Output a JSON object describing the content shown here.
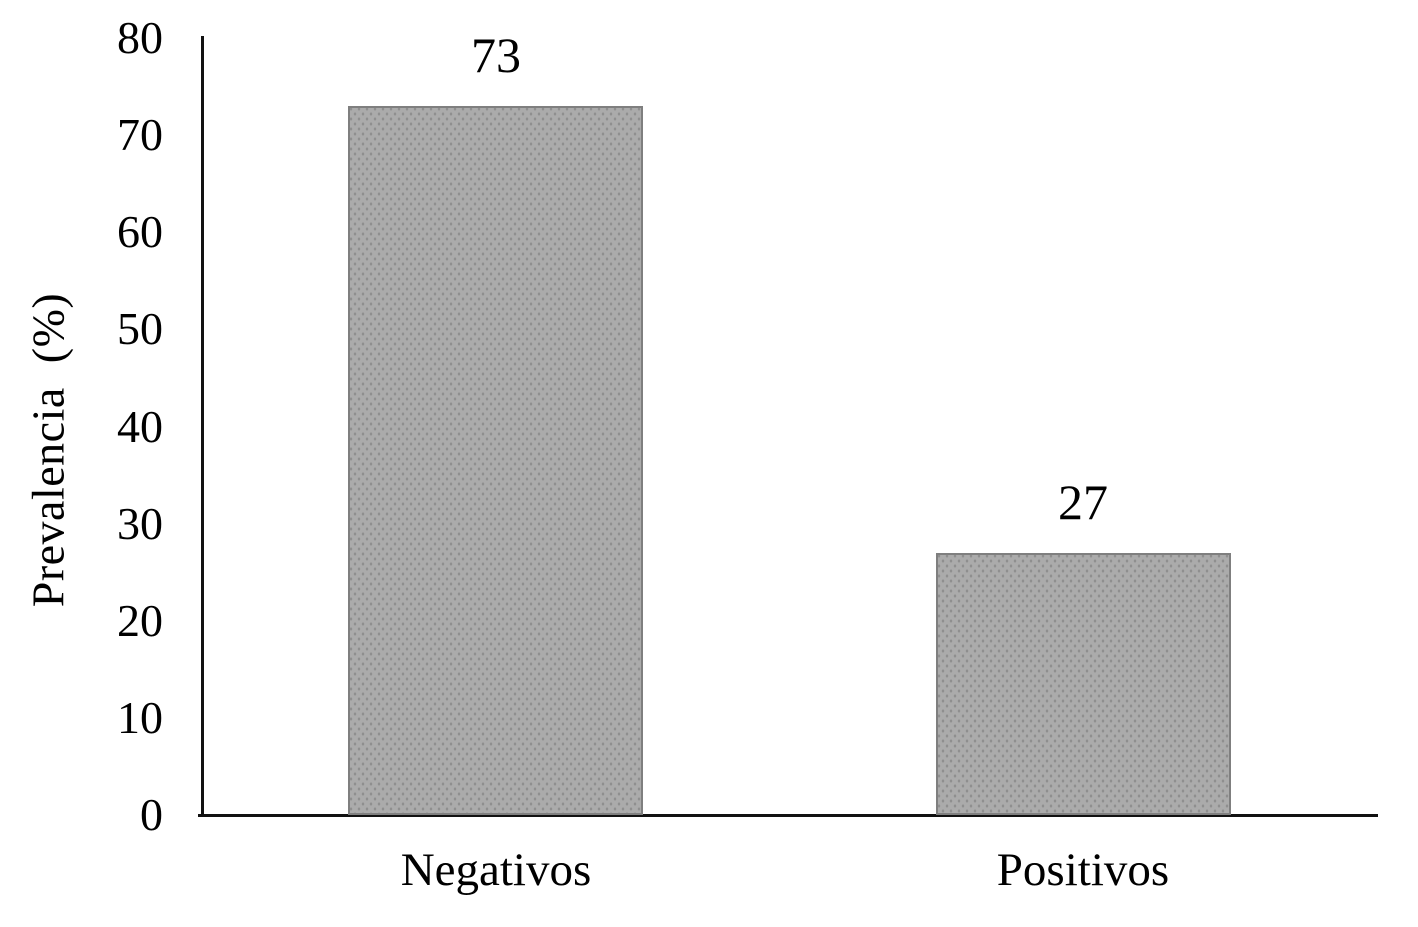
{
  "chart_data": {
    "type": "bar",
    "categories": [
      "Negativos",
      "Positivos"
    ],
    "values": [
      73,
      27
    ],
    "bar_value_labels": [
      "73",
      "27"
    ],
    "title": "",
    "xlabel": "",
    "ylabel": "Prevalencia  (%)",
    "ylim": [
      0,
      80
    ],
    "yticks": [
      0,
      10,
      20,
      30,
      40,
      50,
      60,
      70,
      80
    ],
    "grid": false,
    "legend_position": "none",
    "colors": {
      "bar_fill": "#ababab",
      "bar_dot": "#8f8f8f",
      "bar_border": "#7f7f7f",
      "axis": "#111111",
      "text": "#000000",
      "background": "#ffffff"
    }
  }
}
